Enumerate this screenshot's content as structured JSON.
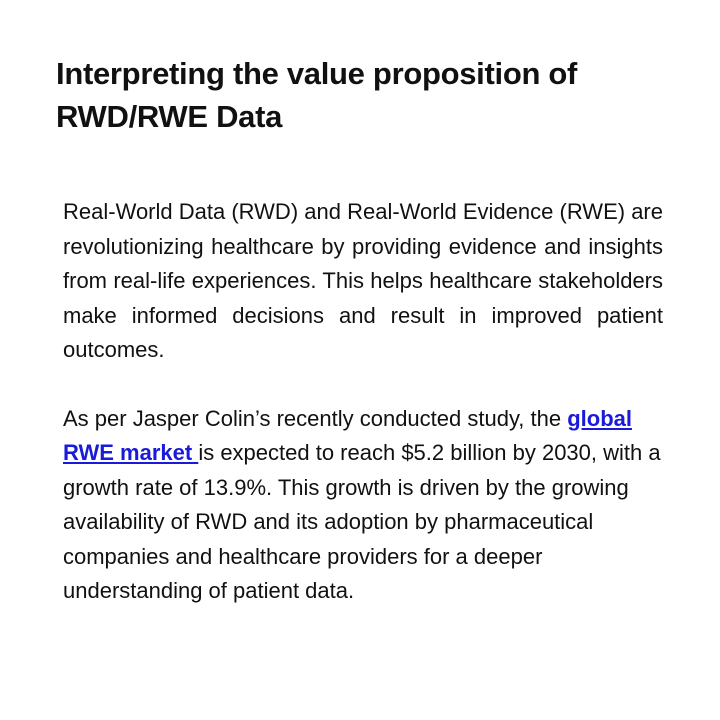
{
  "slide": {
    "title": "Interpreting the value proposition of RWD/RWE Data",
    "paragraph1": "Real-World Data (RWD) and Real-World Evidence (RWE) are revolutionizing healthcare by providing evidence and insights from real-life experiences. This helps healthcare stakeholders make informed decisions and result in improved patient outcomes.",
    "paragraph2": {
      "before_link": "As per Jasper Colin’s recently conducted study, the ",
      "link_text": "global RWE market ",
      "after_link": "is expected to reach $5.2 billion by 2030, with a growth rate of 13.9%. This growth is driven by the growing availability of RWD and its adoption by pharmaceutical companies and healthcare providers for a deeper understanding of patient data."
    }
  },
  "colors": {
    "link": "#1a1adb",
    "text": "#111111",
    "background": "#ffffff"
  }
}
